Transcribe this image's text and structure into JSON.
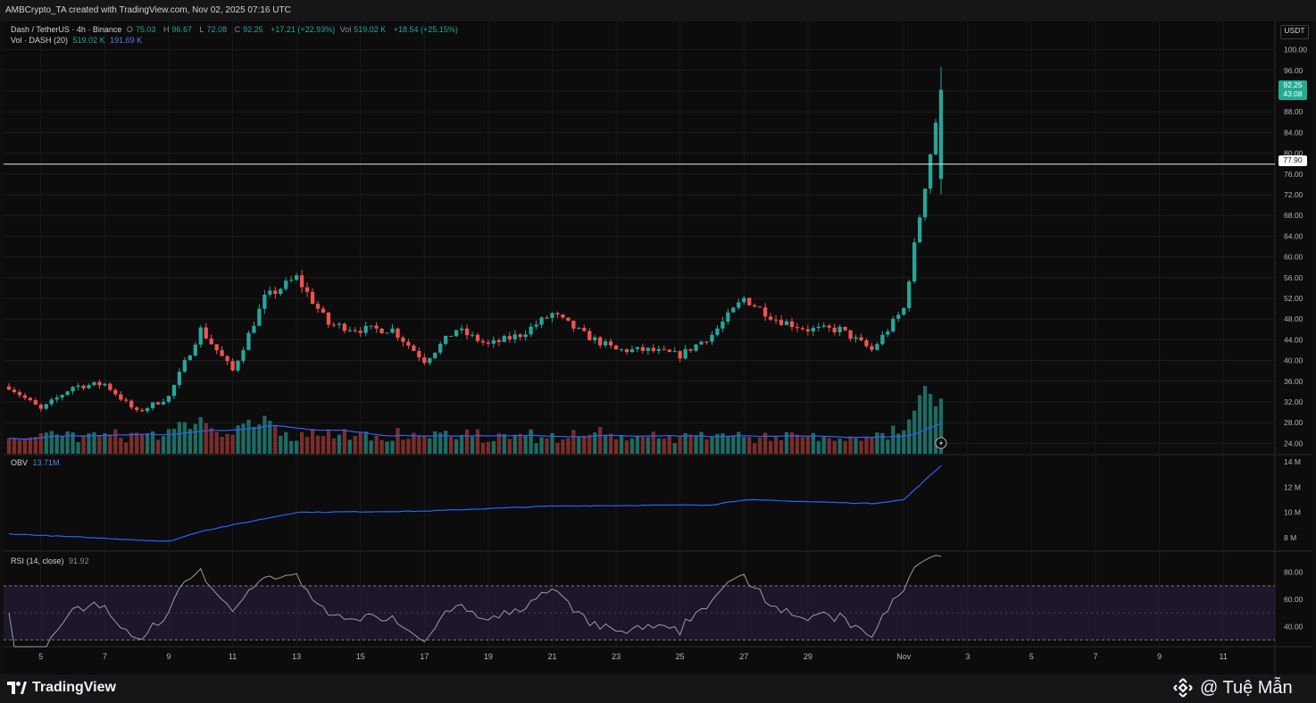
{
  "header": {
    "credit": "AMBCrypto_TA created with TradingView.com, Nov 02, 2025 07:16 UTC"
  },
  "legend": {
    "title": "Dash / TetherUS · 4h · Binance",
    "open_label": "O",
    "open": "75.03",
    "high_label": "H",
    "high": "96.67",
    "low_label": "L",
    "low": "72.08",
    "close_label": "C",
    "close": "92.25",
    "change": "+17.21 (+22.93%)",
    "vol_label": "Vol",
    "vol": "519.02 K",
    "vol_change": "+18.54 (+25.15%)",
    "vol_ma_label": "Vol · DASH (20)",
    "vol_value": "519.02 K",
    "vol_ma_value": "191.69 K",
    "obv_label": "OBV",
    "obv_value": "13.71M",
    "rsi_label": "RSI (14, close)",
    "rsi_value": "91.92"
  },
  "price_axis": {
    "currency": "USDT",
    "ticks": [
      "100.00",
      "96.00",
      "92.00",
      "88.00",
      "84.00",
      "80.00",
      "76.00",
      "72.00",
      "68.00",
      "64.00",
      "60.00",
      "56.00",
      "52.00",
      "48.00",
      "44.00",
      "40.00",
      "36.00",
      "32.00",
      "28.00",
      "24.00"
    ],
    "last_price": "92.25",
    "countdown": "43:08",
    "level_label": "77.90"
  },
  "obv_axis": [
    "14 M",
    "12 M",
    "10 M",
    "8 M"
  ],
  "rsi_axis": [
    "80.00",
    "60.00",
    "40.00"
  ],
  "x_ticks": [
    "5",
    "7",
    "9",
    "11",
    "13",
    "15",
    "17",
    "19",
    "21",
    "23",
    "25",
    "27",
    "29",
    "Nov",
    "3",
    "5",
    "7",
    "9",
    "11"
  ],
  "brand": {
    "tradingview": "TradingView",
    "watermark": "@ Tuệ Mẫn"
  },
  "colors": {
    "up": "#26a69a",
    "down": "#ef5350",
    "volume_ma": "#2962ff",
    "obv": "#2962ff",
    "rsi": "#9a9da6",
    "background": "#0c0c0c"
  },
  "icons": {
    "tradingview": "tradingview-logo-icon",
    "watermark": "binance-logo-icon",
    "flash": "lightning-icon"
  },
  "chart_data": [
    {
      "type": "candlestick",
      "title": "Dash / TetherUS · 4h · Binance",
      "ylabel": "USDT",
      "ylim": [
        22,
        102
      ],
      "horizontal_line": 77.9,
      "x_range": [
        "Oct 4",
        "Nov 12"
      ],
      "anchors": [
        {
          "date": "Oct 4",
          "close": 35
        },
        {
          "date": "Oct 5",
          "close": 30.5
        },
        {
          "date": "Oct 6",
          "close": 35
        },
        {
          "date": "Oct 7",
          "close": 35.5
        },
        {
          "date": "Oct 8",
          "close": 30
        },
        {
          "date": "Oct 9",
          "close": 33
        },
        {
          "date": "Oct 10",
          "close": 46
        },
        {
          "date": "Oct 11",
          "close": 38
        },
        {
          "date": "Oct 12",
          "close": 52
        },
        {
          "date": "Oct 13",
          "close": 56
        },
        {
          "date": "Oct 14",
          "close": 47
        },
        {
          "date": "Oct 15",
          "close": 46
        },
        {
          "date": "Oct 16",
          "close": 46
        },
        {
          "date": "Oct 17",
          "close": 40
        },
        {
          "date": "Oct 18",
          "close": 46
        },
        {
          "date": "Oct 19",
          "close": 43
        },
        {
          "date": "Oct 20",
          "close": 45
        },
        {
          "date": "Oct 21",
          "close": 49
        },
        {
          "date": "Oct 22",
          "close": 45
        },
        {
          "date": "Oct 23",
          "close": 42
        },
        {
          "date": "Oct 24",
          "close": 42
        },
        {
          "date": "Oct 25",
          "close": 41
        },
        {
          "date": "Oct 26",
          "close": 45
        },
        {
          "date": "Oct 27",
          "close": 52
        },
        {
          "date": "Oct 28",
          "close": 48
        },
        {
          "date": "Oct 29",
          "close": 46
        },
        {
          "date": "Oct 30",
          "close": 46
        },
        {
          "date": "Oct 31",
          "close": 42
        },
        {
          "date": "Nov 1",
          "close": 50
        },
        {
          "date": "Nov 1 12:00",
          "close": 68
        },
        {
          "date": "Nov 2 04:00",
          "close": 92.25
        }
      ],
      "last_candle": {
        "open": 75.03,
        "high": 96.67,
        "low": 72.08,
        "close": 92.25
      }
    },
    {
      "type": "bar",
      "title": "Vol · DASH (20)",
      "last_volume": "519.02 K",
      "volume_ma": "191.69 K",
      "note_spikes": [
        {
          "date": "Oct 10",
          "relative": 0.55
        },
        {
          "date": "Oct 12",
          "relative": 0.62
        },
        {
          "date": "Nov 1 16:00",
          "relative": 1.0
        },
        {
          "date": "Nov 2 04:00",
          "relative": 0.75
        }
      ]
    },
    {
      "type": "line",
      "title": "OBV",
      "ylim": [
        7000000,
        14500000
      ],
      "anchors": [
        {
          "date": "Oct 4",
          "value": 8.3
        },
        {
          "date": "Oct 9",
          "value": 7.7
        },
        {
          "date": "Oct 10",
          "value": 8.5
        },
        {
          "date": "Oct 11",
          "value": 9.0
        },
        {
          "date": "Oct 13",
          "value": 10.0
        },
        {
          "date": "Oct 17",
          "value": 10.1
        },
        {
          "date": "Oct 21",
          "value": 10.5
        },
        {
          "date": "Oct 26",
          "value": 10.6
        },
        {
          "date": "Oct 27",
          "value": 11.0
        },
        {
          "date": "Oct 31",
          "value": 10.7
        },
        {
          "date": "Nov 1",
          "value": 11.0
        },
        {
          "date": "Nov 2 04:00",
          "value": 13.71
        }
      ],
      "unit": "M"
    },
    {
      "type": "line",
      "title": "RSI (14, close)",
      "ylim": [
        25,
        95
      ],
      "bands": [
        30,
        70
      ],
      "midline": 50,
      "last": 91.92
    }
  ]
}
